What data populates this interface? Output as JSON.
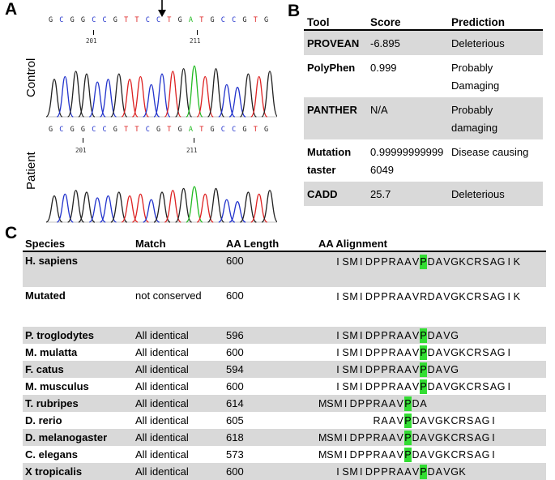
{
  "panel_a": {
    "letter": "A",
    "control_label": "Control",
    "patient_label": "Patient",
    "control_seq": [
      "G",
      "C",
      "G",
      "G",
      "C",
      "C",
      "G",
      "T",
      "T",
      "C",
      "C",
      "T",
      "G",
      "A",
      "T",
      "G",
      "C",
      "C",
      "G",
      "T",
      "G"
    ],
    "patient_seq": [
      "G",
      "C",
      "G",
      "G",
      "C",
      "C",
      "G",
      "T",
      "T",
      "C",
      "G",
      "T",
      "G",
      "A",
      "T",
      "G",
      "C",
      "C",
      "G",
      "T",
      "G"
    ],
    "pos1": "201",
    "pos2": "211",
    "base_colors": {
      "A": "#22bb22",
      "C": "#2233cc",
      "G": "#222222",
      "T": "#dd2222"
    }
  },
  "panel_b": {
    "letter": "B",
    "headers": [
      "Tool",
      "Score",
      "Prediction"
    ],
    "rows": [
      {
        "tool": "PROVEAN",
        "score": "-6.895",
        "prediction": "Deleterious",
        "shade": true
      },
      {
        "tool": "PolyPhen",
        "score": "0.999",
        "prediction": "Probably Damaging",
        "shade": false
      },
      {
        "tool": "PANTHER",
        "score": "N/A",
        "prediction": "Probably damaging",
        "shade": true
      },
      {
        "tool": "Mutation taster",
        "score": "0.999999999996049",
        "prediction": "Disease causing",
        "shade": false
      },
      {
        "tool": "CADD",
        "score": "25.7",
        "prediction": "Deleterious",
        "shade": true
      }
    ]
  },
  "panel_c": {
    "letter": "C",
    "headers": [
      "Species",
      "Match",
      "AA Length",
      "AA Alignment"
    ],
    "highlight_color": "#33dd33",
    "rows": [
      {
        "species": "H. sapiens",
        "match": "",
        "length": "600",
        "align": "ISMIDPPRAAVPDAVGKCRSAGIK",
        "offset": 2,
        "hl": 11,
        "shade": true,
        "tall": true
      },
      {
        "species": "Mutated",
        "match": "not conserved",
        "length": "600",
        "align": "ISMIDPPRAAVRDAVGKCRSAGIK",
        "offset": 2,
        "hl": -1,
        "shade": false,
        "tall": true
      },
      {
        "species": "P. troglodytes",
        "match": "All identical",
        "length": "596",
        "align": "ISMIDPPRAAVPDAVG",
        "offset": 2,
        "hl": 11,
        "shade": true
      },
      {
        "species": "M. mulatta",
        "match": "All identical",
        "length": "600",
        "align": "ISMIDPPRAAVPDAVGKCRSAGI",
        "offset": 2,
        "hl": 11,
        "shade": false
      },
      {
        "species": "F. catus",
        "match": "All identical",
        "length": "594",
        "align": "ISMIDPPRAAVPDAVG",
        "offset": 2,
        "hl": 11,
        "shade": true
      },
      {
        "species": "M. musculus",
        "match": "All identical",
        "length": "600",
        "align": "ISMIDPPRAAVPDAVGKCRSAGI",
        "offset": 2,
        "hl": 11,
        "shade": false
      },
      {
        "species": "T. rubripes",
        "match": "All identical",
        "length": "614",
        "align": "MSMIDPPRAAVPDA",
        "offset": 0,
        "hl": 11,
        "shade": true
      },
      {
        "species": "D. rerio",
        "match": "All identical",
        "length": "605",
        "align": "RAAVPDAVGKCRSAGI",
        "offset": 7,
        "hl": 4,
        "shade": false
      },
      {
        "species": "D. melanogaster",
        "match": "All identical",
        "length": "618",
        "align": "MSMIDPPRAAVPDAVGKCRSAGI",
        "offset": 0,
        "hl": 11,
        "shade": true
      },
      {
        "species": "C. elegans",
        "match": "All identical",
        "length": "573",
        "align": "MSMIDPPRAAVPDAVGKCRSAGI",
        "offset": 0,
        "hl": 11,
        "shade": false
      },
      {
        "species": "X tropicalis",
        "match": "All identical",
        "length": "600",
        "align": "ISMIDPPRAAVPDAVGK",
        "offset": 2,
        "hl": 11,
        "shade": true
      }
    ]
  }
}
